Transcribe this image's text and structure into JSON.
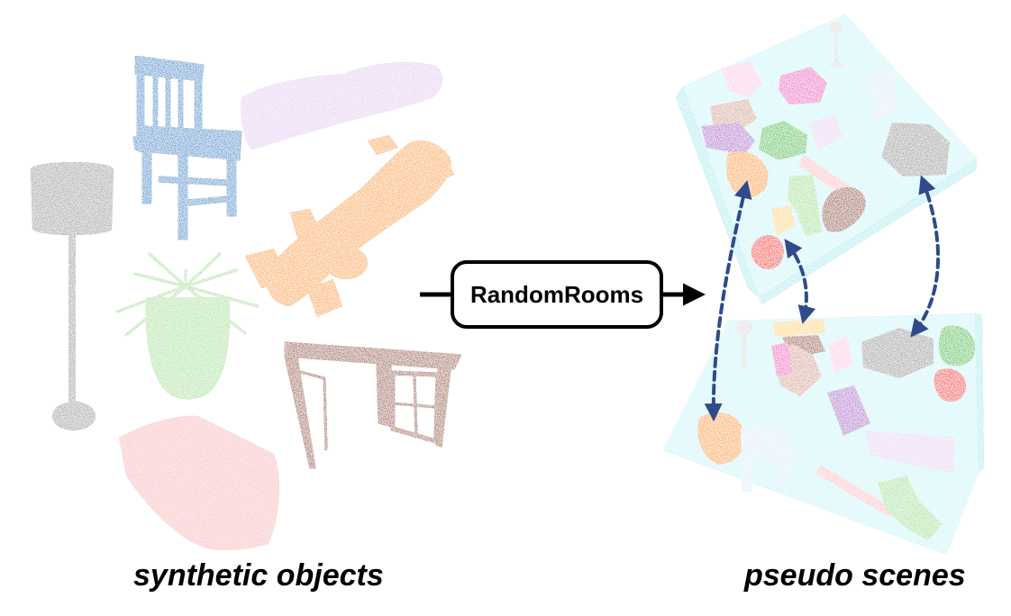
{
  "captions": {
    "left": "synthetic objects",
    "right": "pseudo scenes"
  },
  "method": {
    "label": "RandomRooms"
  },
  "colors": {
    "chair": "#2e6da8",
    "car": "#c4a8d8",
    "race_car": "#e8822e",
    "lamp": "#7c7c7c",
    "plant": "#86c07a",
    "desk": "#7a4535",
    "bed": "#f0a4a4",
    "floor": "#a6dde4",
    "arrow_dashed": "#2f4b8c",
    "scene_red": "#d8302a",
    "scene_pink": "#d04f9c",
    "scene_purple": "#8e58a8"
  },
  "objects": [
    {
      "name": "chair",
      "color_key": "chair"
    },
    {
      "name": "car",
      "color_key": "car"
    },
    {
      "name": "race-car",
      "color_key": "race_car"
    },
    {
      "name": "lamp",
      "color_key": "lamp"
    },
    {
      "name": "plant",
      "color_key": "plant"
    },
    {
      "name": "desk",
      "color_key": "desk"
    },
    {
      "name": "bed",
      "color_key": "bed"
    }
  ]
}
